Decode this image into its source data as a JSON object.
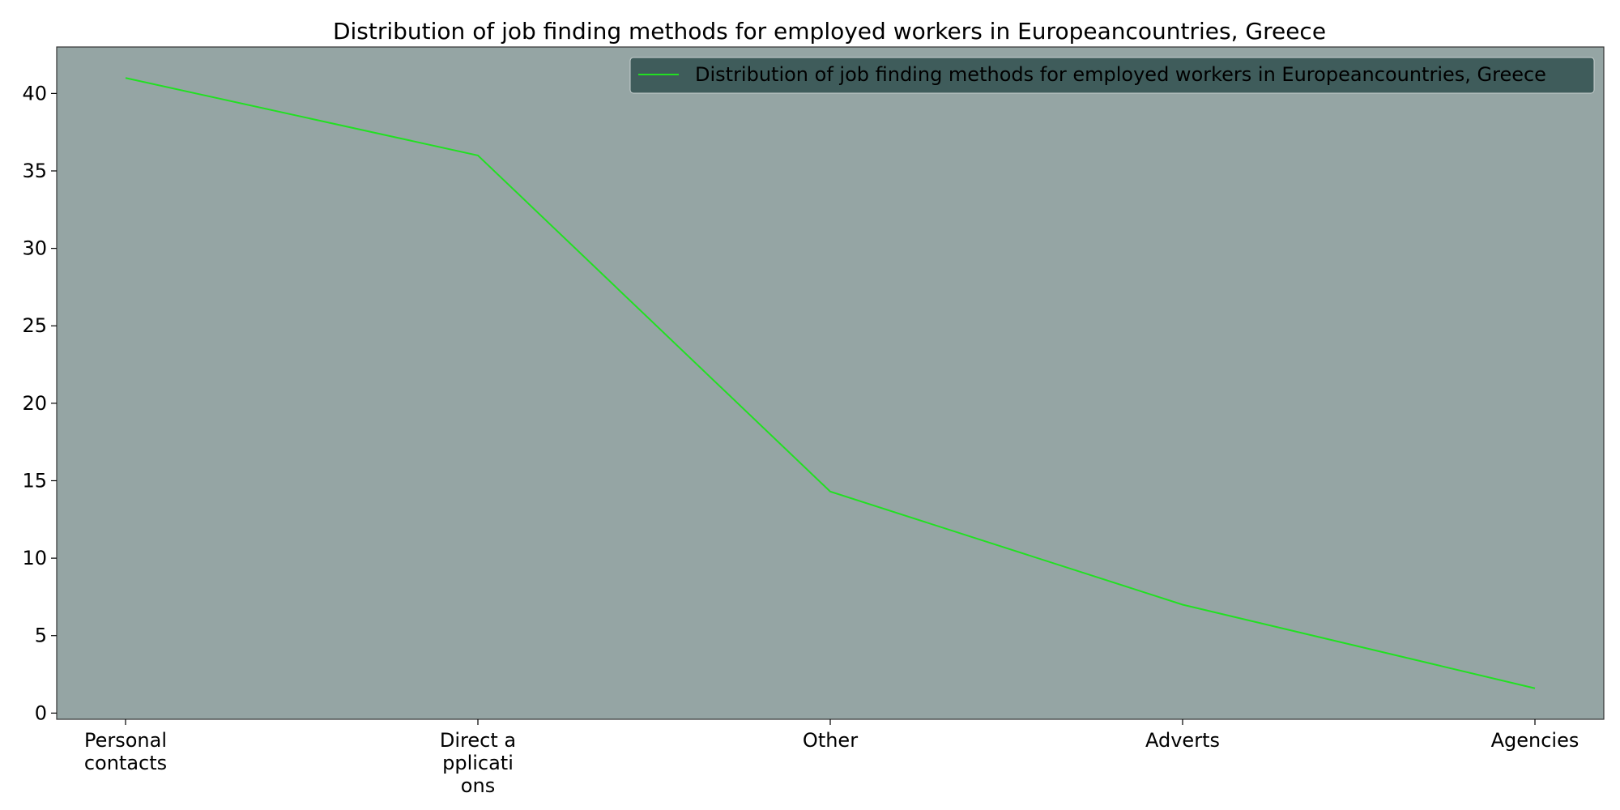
{
  "chart_data": {
    "type": "line",
    "title": "Distribution of job finding methods for employed workers in Europeancountries, Greece",
    "xlabel": "",
    "ylabel": "",
    "categories": [
      "Personal\ncontacts",
      "Direct a\npplicati\nons",
      "Other",
      "Adverts",
      "Agencies"
    ],
    "series": [
      {
        "name": "Distribution of job finding methods for employed workers in Europeancountries, Greece",
        "values": [
          41.0,
          36.0,
          14.3,
          7.0,
          1.6
        ],
        "color": "#22e022"
      }
    ],
    "ylim": [
      -0.4,
      43
    ],
    "yticks": [
      0,
      5,
      10,
      15,
      20,
      25,
      30,
      35,
      40
    ],
    "grid": false,
    "legend": "top-right",
    "colors": {
      "plot_background": "#95a5a4",
      "legend_background": "#3f5c5b",
      "line": "#22e022"
    }
  }
}
